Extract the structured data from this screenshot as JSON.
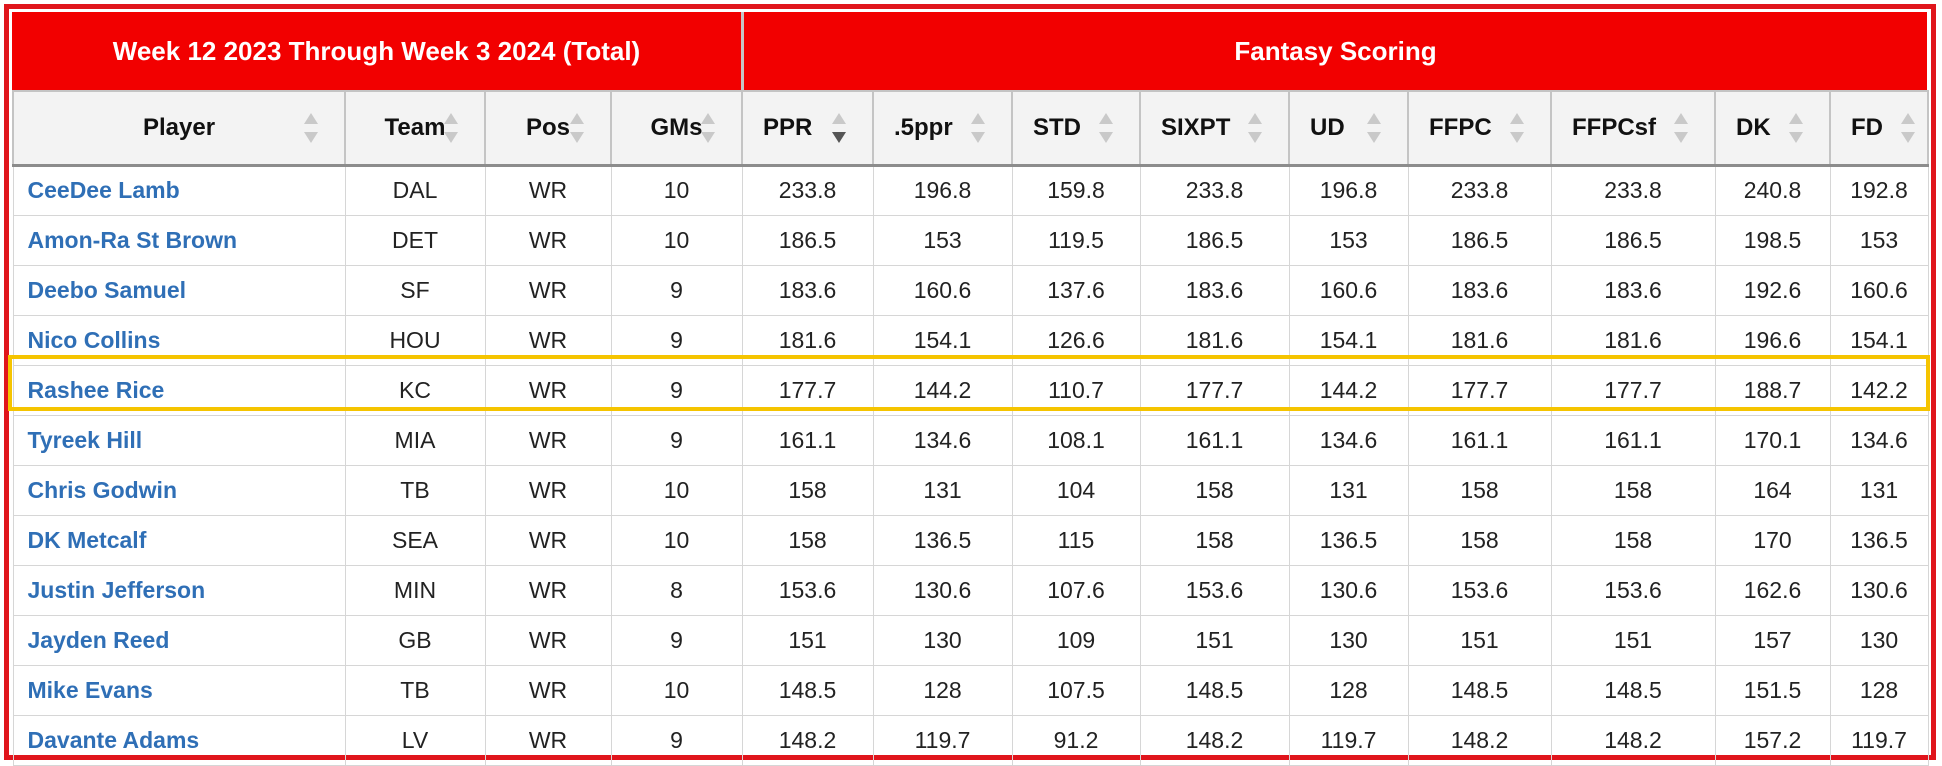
{
  "header": {
    "left_title": "Week 12 2023 Through Week 3 2024 (Total)",
    "right_title": "Fantasy Scoring"
  },
  "columns": [
    "Player",
    "Team",
    "Pos",
    "GMs",
    "PPR",
    ".5ppr",
    "STD",
    "SIXPT",
    "UD",
    "FFPC",
    "FFPCsf",
    "DK",
    "FD"
  ],
  "sorted_column": "PPR",
  "sort_direction": "descending",
  "highlighted_row": "Rashee Rice",
  "colors": {
    "header_bg": "#f20000",
    "frame": "#e0151c",
    "highlight": "#f5c400",
    "player_link": "#2f6fb6"
  },
  "rows": [
    [
      "CeeDee Lamb",
      "DAL",
      "WR",
      "10",
      "233.8",
      "196.8",
      "159.8",
      "233.8",
      "196.8",
      "233.8",
      "233.8",
      "240.8",
      "192.8"
    ],
    [
      "Amon-Ra St Brown",
      "DET",
      "WR",
      "10",
      "186.5",
      "153",
      "119.5",
      "186.5",
      "153",
      "186.5",
      "186.5",
      "198.5",
      "153"
    ],
    [
      "Deebo Samuel",
      "SF",
      "WR",
      "9",
      "183.6",
      "160.6",
      "137.6",
      "183.6",
      "160.6",
      "183.6",
      "183.6",
      "192.6",
      "160.6"
    ],
    [
      "Nico Collins",
      "HOU",
      "WR",
      "9",
      "181.6",
      "154.1",
      "126.6",
      "181.6",
      "154.1",
      "181.6",
      "181.6",
      "196.6",
      "154.1"
    ],
    [
      "Rashee Rice",
      "KC",
      "WR",
      "9",
      "177.7",
      "144.2",
      "110.7",
      "177.7",
      "144.2",
      "177.7",
      "177.7",
      "188.7",
      "142.2"
    ],
    [
      "Tyreek Hill",
      "MIA",
      "WR",
      "9",
      "161.1",
      "134.6",
      "108.1",
      "161.1",
      "134.6",
      "161.1",
      "161.1",
      "170.1",
      "134.6"
    ],
    [
      "Chris Godwin",
      "TB",
      "WR",
      "10",
      "158",
      "131",
      "104",
      "158",
      "131",
      "158",
      "158",
      "164",
      "131"
    ],
    [
      "DK Metcalf",
      "SEA",
      "WR",
      "10",
      "158",
      "136.5",
      "115",
      "158",
      "136.5",
      "158",
      "158",
      "170",
      "136.5"
    ],
    [
      "Justin Jefferson",
      "MIN",
      "WR",
      "8",
      "153.6",
      "130.6",
      "107.6",
      "153.6",
      "130.6",
      "153.6",
      "153.6",
      "162.6",
      "130.6"
    ],
    [
      "Jayden Reed",
      "GB",
      "WR",
      "9",
      "151",
      "130",
      "109",
      "151",
      "130",
      "151",
      "151",
      "157",
      "130"
    ],
    [
      "Mike Evans",
      "TB",
      "WR",
      "10",
      "148.5",
      "128",
      "107.5",
      "148.5",
      "128",
      "148.5",
      "148.5",
      "151.5",
      "128"
    ],
    [
      "Davante Adams",
      "LV",
      "WR",
      "9",
      "148.2",
      "119.7",
      "91.2",
      "148.2",
      "119.7",
      "148.2",
      "148.2",
      "157.2",
      "119.7"
    ]
  ]
}
